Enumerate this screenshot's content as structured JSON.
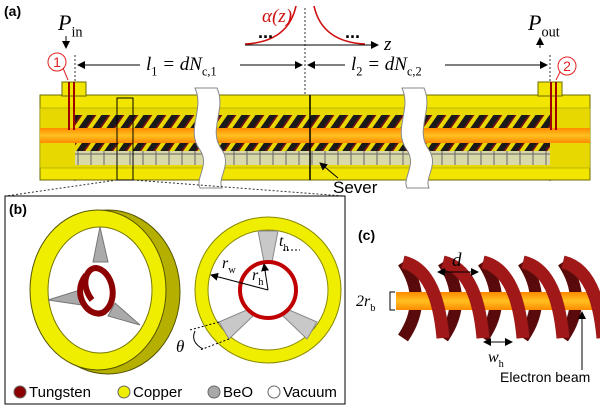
{
  "panel_a": {
    "label": "(a)",
    "p_in": [
      "P",
      "in"
    ],
    "p_out": [
      "P",
      "out"
    ],
    "port_1": "1",
    "port_2": "2",
    "alpha": "α(z)",
    "z_axis": "z",
    "ellipsis": [
      "...",
      "..."
    ],
    "l1": [
      "l",
      "1",
      " = dN",
      "c,1"
    ],
    "l2": [
      "l",
      "2",
      " = dN",
      "c,2"
    ],
    "sever": "Sever"
  },
  "panel_b": {
    "label": "(b)",
    "r_w": [
      "r",
      "w"
    ],
    "r_h": [
      "r",
      "h"
    ],
    "t_h": [
      "t",
      "h"
    ],
    "theta": "θ",
    "legend": [
      {
        "name": "Tungsten",
        "color": "#8b0000"
      },
      {
        "name": "Copper",
        "color": "#f0ee00"
      },
      {
        "name": "BeO",
        "color": "#a8a8a8"
      },
      {
        "name": "Vacuum",
        "color": "#ffffff"
      }
    ]
  },
  "panel_c": {
    "label": "(c)",
    "d": "d",
    "r_b": [
      "2r",
      "b"
    ],
    "w_h": [
      "w",
      "h"
    ],
    "beam": "Electron beam"
  }
}
